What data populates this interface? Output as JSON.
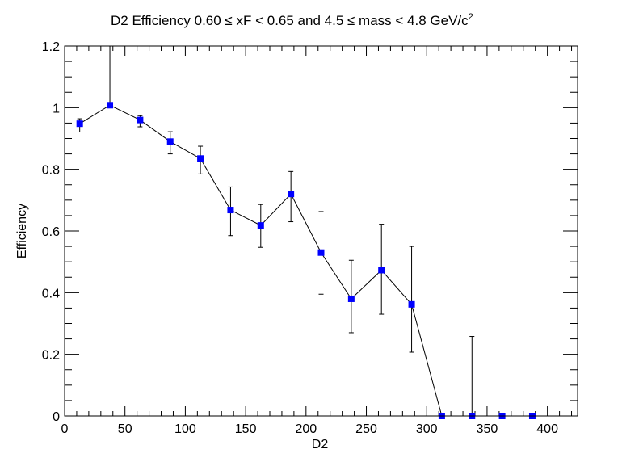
{
  "chart_data": {
    "type": "scatter",
    "title": "D2 Efficiency 0.60 ≤ xF < 0.65 and 4.5 ≤ mass < 4.8 GeV/c",
    "title_superscript": "2",
    "xlabel": "D2",
    "ylabel": "Efficiency",
    "xlim": [
      0,
      425
    ],
    "ylim": [
      0,
      1.2
    ],
    "x_ticks": [
      0,
      50,
      100,
      150,
      200,
      250,
      300,
      350,
      400
    ],
    "x_tick_labels": [
      "0",
      "50",
      "100",
      "150",
      "200",
      "250",
      "300",
      "350",
      "400"
    ],
    "y_ticks": [
      0,
      0.2,
      0.4,
      0.6,
      0.8,
      1,
      1.2
    ],
    "y_tick_labels": [
      "0",
      "0.2",
      "0.4",
      "0.6",
      "0.8",
      "1",
      "1.2"
    ],
    "grid": false,
    "legend": "none",
    "marker_color": "#0000ff",
    "line_color": "#000000",
    "series": [
      {
        "x": [
          12.5,
          37.5,
          62.5,
          87.5,
          112.5,
          137.5,
          162.5,
          187.5,
          212.5,
          237.5,
          262.5,
          287.5,
          312.5,
          337.5,
          362.5,
          387.5
        ],
        "y": [
          0.948,
          1.008,
          0.96,
          0.89,
          0.835,
          0.668,
          0.618,
          0.72,
          0.53,
          0.38,
          0.473,
          0.362,
          0.0,
          0.0,
          0.0,
          0.0
        ],
        "err_low": [
          0.027,
          0.008,
          0.022,
          0.04,
          0.05,
          0.083,
          0.071,
          0.09,
          0.135,
          0.11,
          0.143,
          0.155,
          0.0,
          0.0,
          0.0,
          0.0
        ],
        "err_high": [
          0.016,
          0.192,
          0.014,
          0.032,
          0.04,
          0.075,
          0.068,
          0.073,
          0.133,
          0.125,
          0.149,
          0.188,
          0.0,
          0.258,
          0.0,
          0.0
        ]
      }
    ]
  }
}
